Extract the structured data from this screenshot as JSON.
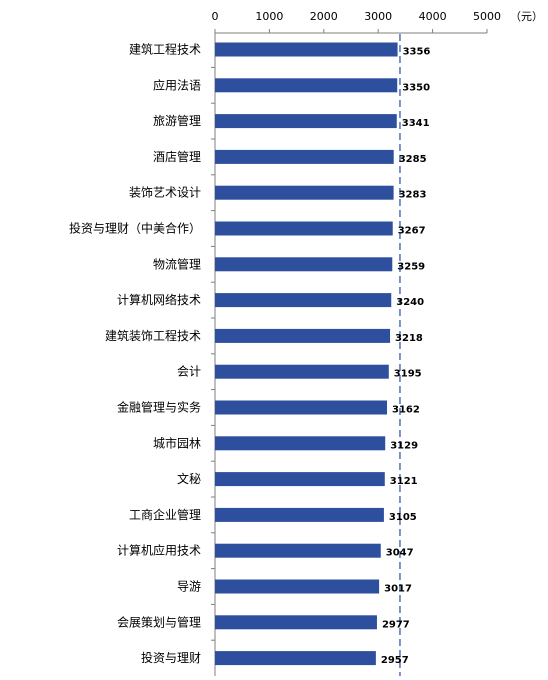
{
  "chart_data": {
    "type": "bar",
    "orientation": "horizontal",
    "categories": [
      "建筑工程技术",
      "应用法语",
      "旅游管理",
      "酒店管理",
      "装饰艺术设计",
      "投资与理财（中美合作）",
      "物流管理",
      "计算机网络技术",
      "建筑装饰工程技术",
      "会计",
      "金融管理与实务",
      "城市园林",
      "文秘",
      "工商企业管理",
      "计算机应用技术",
      "导游",
      "会展策划与管理",
      "投资与理财"
    ],
    "values": [
      3356,
      3350,
      3341,
      3285,
      3283,
      3267,
      3259,
      3240,
      3218,
      3195,
      3162,
      3129,
      3121,
      3105,
      3047,
      3017,
      2977,
      2957
    ],
    "xlim": [
      0,
      5000
    ],
    "xticks": [
      "0",
      "1000",
      "2000",
      "3000",
      "4000",
      "5000"
    ],
    "unit": "（元）",
    "reference_line": 3400,
    "bar_color": "#2E4F9E",
    "reference_line_color": "#5B7BC0",
    "axis_position": "top",
    "grid": false
  }
}
